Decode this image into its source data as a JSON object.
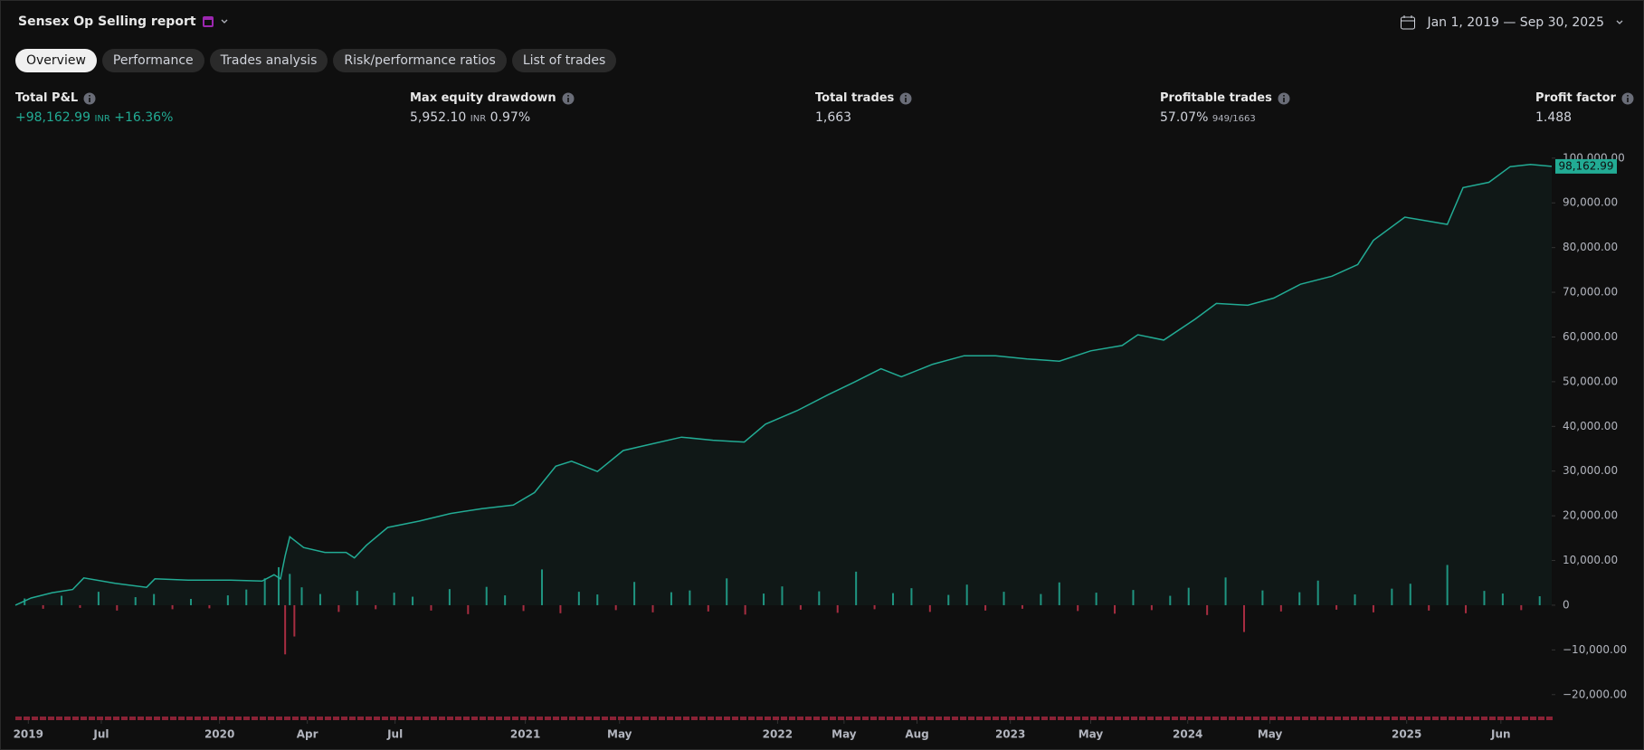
{
  "header": {
    "title": "Sensex Op Selling report",
    "date_range": "Jan 1, 2019 — Sep 30, 2025"
  },
  "tabs": [
    "Overview",
    "Performance",
    "Trades analysis",
    "Risk/performance ratios",
    "List of trades"
  ],
  "metrics": [
    {
      "label": "Total P&L",
      "value": "+98,162.99",
      "unit": "INR",
      "extra": "+16.36%"
    },
    {
      "label": "Max equity drawdown",
      "value": "5,952.10",
      "unit": "INR",
      "extra": "0.97%"
    },
    {
      "label": "Total trades",
      "value": "1,663"
    },
    {
      "label": "Profitable trades",
      "value": "57.07%",
      "extra": "949/1663"
    },
    {
      "label": "Profit factor",
      "value": "1.488"
    }
  ],
  "chart_data": {
    "type": "line",
    "last_value_label": "98,162.99",
    "xlim": [
      0,
      1663
    ],
    "xticks": [
      {
        "value": 14,
        "label": "2019"
      },
      {
        "value": 93,
        "label": "Jul"
      },
      {
        "value": 221,
        "label": "2020"
      },
      {
        "value": 316,
        "label": "Apr"
      },
      {
        "value": 411,
        "label": "Jul"
      },
      {
        "value": 552,
        "label": "2021"
      },
      {
        "value": 654,
        "label": "May"
      },
      {
        "value": 825,
        "label": "2022"
      },
      {
        "value": 897,
        "label": "May"
      },
      {
        "value": 976,
        "label": "Aug"
      },
      {
        "value": 1077,
        "label": "2023"
      },
      {
        "value": 1164,
        "label": "May"
      },
      {
        "value": 1269,
        "label": "2024"
      },
      {
        "value": 1358,
        "label": "May"
      },
      {
        "value": 1506,
        "label": "2025"
      },
      {
        "value": 1608,
        "label": "Jun"
      }
    ],
    "ylim": [
      -24500,
      103000
    ],
    "yticks": [
      {
        "value": -20000,
        "label": "−20,000.00"
      },
      {
        "value": -10000,
        "label": "−10,000.00"
      },
      0,
      {
        "value": 10000,
        "label": "10,000.00"
      },
      {
        "value": 20000,
        "label": "20,000.00"
      },
      {
        "value": 30000,
        "label": "30,000.00"
      },
      {
        "value": 40000,
        "label": "40,000.00"
      },
      {
        "value": 50000,
        "label": "50,000.00"
      },
      {
        "value": 60000,
        "label": "60,000.00"
      },
      {
        "value": 70000,
        "label": "70,000.00"
      },
      {
        "value": 80000,
        "label": "80,000.00"
      },
      {
        "value": 90000,
        "label": "90,000.00"
      },
      {
        "value": 100000,
        "label": "100,000.00"
      }
    ],
    "grid": false,
    "series": [
      {
        "color": "#22ab94",
        "x": [
          0,
          17,
          40,
          62,
          74,
          108,
          142,
          151,
          187,
          233,
          267,
          280,
          287,
          292,
          297,
          312,
          335,
          358,
          367,
          380,
          403,
          437,
          471,
          505,
          539,
          562,
          585,
          602,
          630,
          658,
          687,
          721,
          755,
          789,
          812,
          846,
          880,
          908,
          937,
          959,
          993,
          1027,
          1061,
          1095,
          1130,
          1164,
          1198,
          1215,
          1243,
          1277,
          1300,
          1334,
          1362,
          1391,
          1425,
          1453,
          1470,
          1504,
          1550,
          1567,
          1595,
          1618,
          1640,
          1663
        ],
        "values": [
          0,
          1600,
          2800,
          3500,
          6100,
          4900,
          4000,
          5900,
          5600,
          5600,
          5400,
          6800,
          5900,
          11000,
          15300,
          12900,
          11800,
          11800,
          10600,
          13400,
          17400,
          18800,
          20500,
          21600,
          22400,
          25200,
          31100,
          32200,
          29900,
          34600,
          36000,
          37600,
          36900,
          36500,
          40500,
          43500,
          47100,
          49900,
          52900,
          51100,
          53900,
          55800,
          55800,
          55100,
          54600,
          56900,
          58100,
          60500,
          59300,
          64000,
          67500,
          67100,
          68700,
          71800,
          73600,
          76200,
          81600,
          86800,
          85200,
          93400,
          94600,
          98100,
          98600,
          98162.99
        ]
      },
      {
        "type": "bar",
        "color_up": "#22ab94",
        "color_down": "#c2324a",
        "x": [
          10,
          30,
          50,
          70,
          90,
          110,
          130,
          150,
          170,
          190,
          210,
          230,
          250,
          270,
          285,
          292,
          297,
          302,
          310,
          330,
          350,
          370,
          390,
          410,
          430,
          450,
          470,
          490,
          510,
          530,
          550,
          570,
          590,
          610,
          630,
          650,
          670,
          690,
          710,
          730,
          750,
          770,
          790,
          810,
          830,
          850,
          870,
          890,
          910,
          930,
          950,
          970,
          990,
          1010,
          1030,
          1050,
          1070,
          1090,
          1110,
          1130,
          1150,
          1170,
          1190,
          1210,
          1230,
          1250,
          1270,
          1290,
          1310,
          1330,
          1350,
          1370,
          1390,
          1410,
          1430,
          1450,
          1470,
          1490,
          1510,
          1530,
          1550,
          1570,
          1590,
          1610,
          1630,
          1650
        ],
        "values": [
          1500,
          -800,
          2100,
          -600,
          3000,
          -1200,
          1800,
          2500,
          -900,
          1400,
          -700,
          2200,
          3500,
          6000,
          8500,
          -11000,
          7000,
          -7000,
          4000,
          2500,
          -1500,
          3200,
          -900,
          2800,
          1900,
          -1200,
          3600,
          -2000,
          4100,
          2200,
          -1300,
          8000,
          -1800,
          3000,
          2400,
          -1100,
          5200,
          -1600,
          2900,
          3300,
          -1400,
          6000,
          -2100,
          2600,
          4200,
          -1000,
          3100,
          -1700,
          7500,
          -900,
          2700,
          3800,
          -1500,
          2300,
          4600,
          -1200,
          3000,
          -800,
          2500,
          5100,
          -1300,
          2800,
          -1900,
          3400,
          -1100,
          2100,
          3900,
          -2200,
          6200,
          -6000,
          3300,
          -1400,
          2900,
          5500,
          -1000,
          2400,
          -1600,
          3700,
          4800,
          -1200,
          9000,
          -1800,
          3200,
          2600,
          -1100,
          2000
        ]
      }
    ]
  }
}
